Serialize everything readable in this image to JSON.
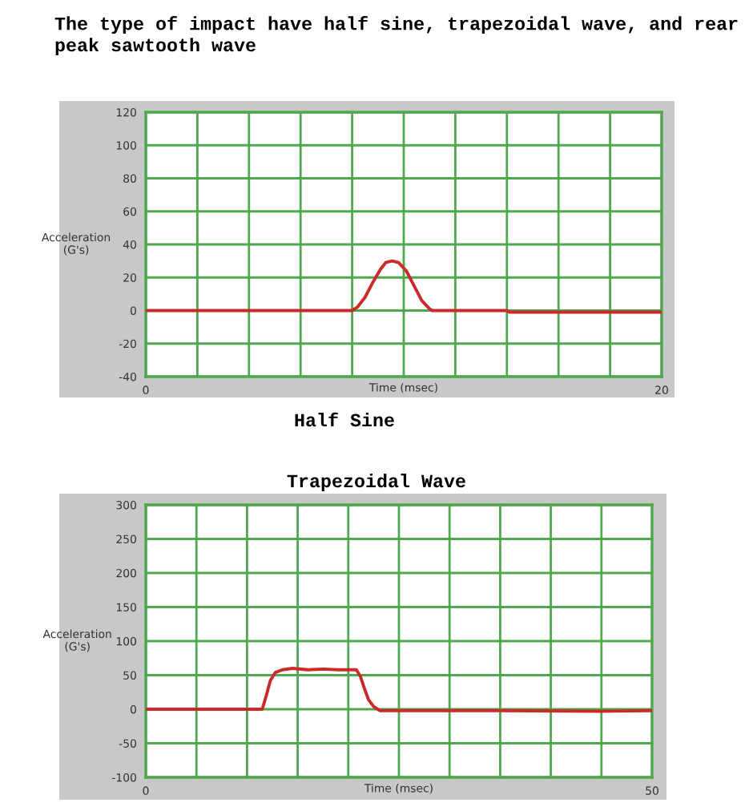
{
  "chart_data": [
    {
      "type": "line",
      "title": "The type of impact have half sine, trapezoidal wave, and rear peak sawtooth wave",
      "xlabel": "Time (msec)",
      "ylabel": "Acceleration\n(G's)",
      "annotations": [
        "Half Sine"
      ],
      "series": [
        {
          "color": "#cc2a2a",
          "x": [
            0,
            8.0,
            8.2,
            8.5,
            8.8,
            9.1,
            9.3,
            9.55,
            9.8,
            10.1,
            10.4,
            10.7,
            11.0,
            11.1,
            14.0,
            14.1,
            20
          ],
          "values": [
            0,
            0,
            2,
            8,
            17,
            25,
            29,
            30,
            29,
            24,
            15,
            6,
            1,
            0,
            0,
            -1,
            -1
          ]
        }
      ],
      "xlim": [
        0,
        20
      ],
      "xticks": [
        0,
        {
          "value": 2,
          "label": null
        },
        {
          "value": 4,
          "label": null
        },
        {
          "value": 6,
          "label": null
        },
        {
          "value": 8,
          "label": null
        },
        {
          "value": 10,
          "label": null
        },
        {
          "value": 12,
          "label": null
        },
        {
          "value": 14,
          "label": null
        },
        {
          "value": 16,
          "label": null
        },
        {
          "value": 18,
          "label": null
        },
        20
      ],
      "ylim": [
        -40,
        120
      ],
      "yticks": [
        -40,
        -20,
        0,
        20,
        40,
        60,
        80,
        100,
        120
      ],
      "grid": true,
      "legend": false
    },
    {
      "type": "line",
      "title": "Trapezoidal Wave",
      "xlabel": "Time (msec)",
      "ylabel": "Acceleration\n(G's)",
      "series": [
        {
          "color": "#cc2a2a",
          "x": [
            0,
            11.5,
            11.9,
            12.3,
            12.8,
            13.5,
            14.5,
            16,
            17.5,
            19,
            20.8,
            21.2,
            21.6,
            22.0,
            22.5,
            23.1,
            30,
            35,
            45,
            50
          ],
          "values": [
            0,
            0,
            20,
            42,
            54,
            58,
            60,
            58,
            59,
            58,
            58,
            48,
            30,
            14,
            4,
            -2,
            -2,
            -2,
            -3,
            -2
          ]
        }
      ],
      "xlim": [
        0,
        50
      ],
      "xticks": [
        0,
        {
          "value": 5,
          "label": null
        },
        {
          "value": 10,
          "label": null
        },
        {
          "value": 15,
          "label": null
        },
        {
          "value": 20,
          "label": null
        },
        {
          "value": 25,
          "label": null
        },
        {
          "value": 30,
          "label": null
        },
        {
          "value": 35,
          "label": null
        },
        {
          "value": 40,
          "label": null
        },
        {
          "value": 45,
          "label": null
        },
        50
      ],
      "ylim": [
        -100,
        300
      ],
      "yticks": [
        -100,
        -50,
        0,
        50,
        100,
        150,
        200,
        250,
        300
      ],
      "grid": true,
      "legend": false
    }
  ]
}
